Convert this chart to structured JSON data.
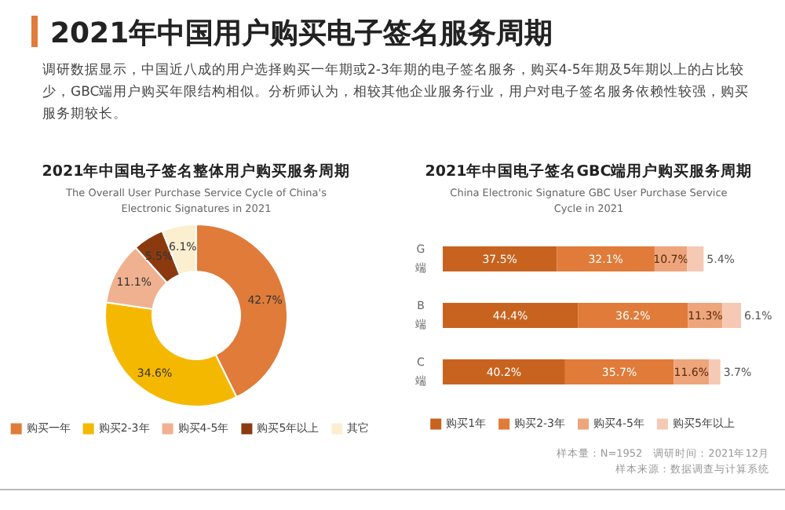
{
  "chart_data": [
    {
      "type": "other",
      "title": "2021年中国用户购买电子签名服务周期",
      "subtitle": "调研数据显示，中国近八成的用户选择购买一年期或2-3年期的电子签名服务，购买4-5年期及5年期以上的占比较少，GBC端用户购买年限结构相似。分析师认为，相较其他企业服务行业，用户对电子签名服务依赖性较强，购买服务期较长。"
    },
    {
      "type": "donut",
      "title": "2021年中国电子签名整体用户购买服务周期",
      "subtitle": "The Overall User Purchase Service Cycle of China's Electronic Signatures in 2021",
      "categories": [
        "购买一年",
        "购买2-3年",
        "购买4-5年",
        "购买5年以上",
        "其它"
      ],
      "values": [
        42.7,
        34.6,
        11.1,
        5.5,
        6.1
      ],
      "value_labels": [
        "42.7%",
        "34.6%",
        "11.1%",
        "5.5%",
        "6.1%"
      ],
      "colors": [
        "#e07b39",
        "#f5b800",
        "#f0b190",
        "#8b3a0f",
        "#fbefd0"
      ],
      "legend": "bottom"
    },
    {
      "type": "bar",
      "orientation": "horizontal",
      "stacked": true,
      "title": "2021年中国电子签名GBC端用户购买服务周期",
      "subtitle": "China Electronic Signature GBC User Purchase Service Cycle in 2021",
      "categories": [
        "G端",
        "B端",
        "C端"
      ],
      "series": [
        {
          "name": "购买1年",
          "color": "#c8631f",
          "values": [
            37.5,
            44.4,
            40.2
          ],
          "value_labels": [
            "37.5%",
            "44.4%",
            "40.2%"
          ]
        },
        {
          "name": "购买2-3年",
          "color": "#e07b39",
          "values": [
            32.1,
            36.2,
            35.7
          ],
          "value_labels": [
            "32.1%",
            "36.2%",
            "35.7%"
          ]
        },
        {
          "name": "购买4-5年",
          "color": "#eea57c",
          "values": [
            10.7,
            11.3,
            11.6
          ],
          "value_labels": [
            "10.7%",
            "11.3%",
            "11.6%"
          ]
        },
        {
          "name": "购买5年以上",
          "color": "#f6c9b4",
          "values": [
            5.4,
            6.1,
            3.7
          ],
          "value_labels": [
            "5.4%",
            "6.1%",
            "3.7%"
          ]
        }
      ],
      "legend": "bottom",
      "annotations": [
        "样本量：N=1952　调研时间：2021年12月",
        "样本来源：数据调查与计算系统"
      ]
    }
  ]
}
